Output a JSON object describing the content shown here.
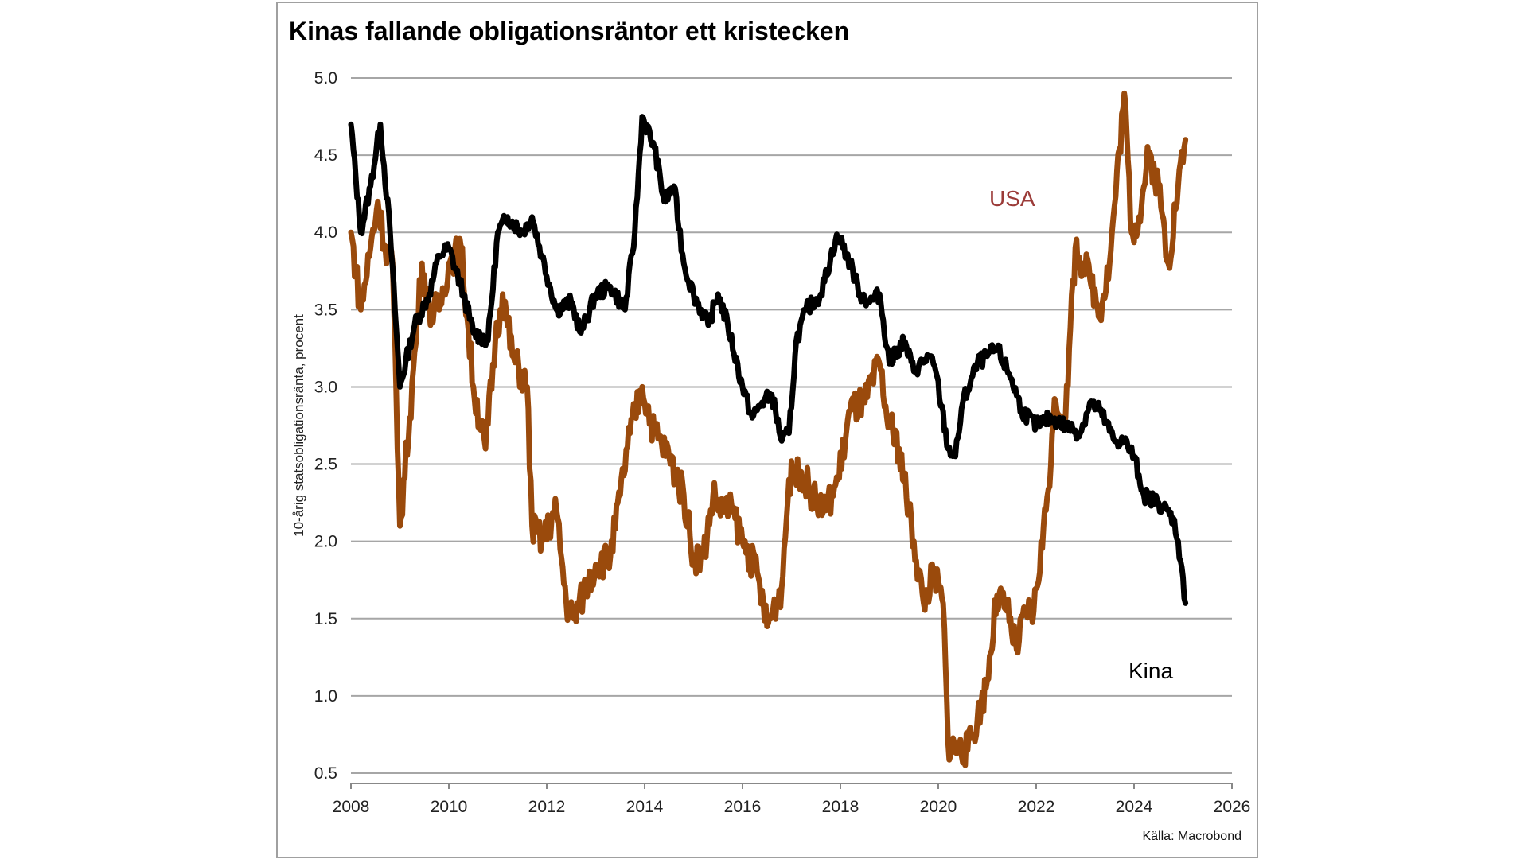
{
  "chart_data": {
    "type": "line",
    "title": "Kinas fallande obligationsräntor ett kristecken",
    "ylabel": "10-årig statsobligationsränta, procent",
    "xlabel": "",
    "source": "Källa: Macrobond",
    "xlim": [
      2008,
      2026
    ],
    "ylim": [
      0.5,
      5.0
    ],
    "grid": true,
    "xticks": [
      "2008",
      "2010",
      "2012",
      "2014",
      "2016",
      "2018",
      "2020",
      "2022",
      "2024",
      "2026"
    ],
    "yticks": [
      "5.0",
      "4.5",
      "4.0",
      "3.5",
      "3.0",
      "2.5",
      "2.0",
      "1.5",
      "1.0",
      "0.5"
    ],
    "series": [
      {
        "name": "Kina",
        "color": "#000000",
        "label_color": "#000000",
        "x": [
          2008.0,
          2008.2,
          2008.4,
          2008.6,
          2008.8,
          2009.0,
          2009.3,
          2009.6,
          2009.8,
          2010.0,
          2010.3,
          2010.5,
          2010.8,
          2011.0,
          2011.2,
          2011.5,
          2011.7,
          2011.9,
          2012.2,
          2012.5,
          2012.7,
          2013.0,
          2013.3,
          2013.6,
          2013.8,
          2013.95,
          2014.2,
          2014.4,
          2014.6,
          2014.8,
          2015.0,
          2015.3,
          2015.5,
          2015.7,
          2016.0,
          2016.2,
          2016.4,
          2016.6,
          2016.8,
          2016.95,
          2017.1,
          2017.3,
          2017.6,
          2017.9,
          2018.0,
          2018.2,
          2018.4,
          2018.6,
          2018.8,
          2019.0,
          2019.3,
          2019.5,
          2019.8,
          2019.95,
          2020.2,
          2020.35,
          2020.5,
          2020.8,
          2021.0,
          2021.2,
          2021.5,
          2021.7,
          2022.0,
          2022.3,
          2022.6,
          2022.9,
          2023.1,
          2023.3,
          2023.6,
          2023.8,
          2024.0,
          2024.2,
          2024.5,
          2024.8,
          2024.9,
          2025.05
        ],
        "values": [
          4.7,
          4.0,
          4.3,
          4.7,
          4.0,
          3.0,
          3.4,
          3.6,
          3.85,
          3.9,
          3.6,
          3.35,
          3.3,
          4.0,
          4.1,
          4.0,
          4.1,
          3.85,
          3.5,
          3.55,
          3.35,
          3.6,
          3.65,
          3.5,
          4.0,
          4.75,
          4.55,
          4.2,
          4.3,
          3.8,
          3.6,
          3.4,
          3.6,
          3.4,
          3.0,
          2.8,
          2.9,
          2.95,
          2.65,
          2.7,
          3.3,
          3.5,
          3.6,
          3.95,
          3.95,
          3.8,
          3.6,
          3.55,
          3.6,
          3.15,
          3.3,
          3.1,
          3.2,
          3.1,
          2.6,
          2.55,
          2.9,
          3.15,
          3.2,
          3.25,
          3.05,
          2.85,
          2.75,
          2.8,
          2.75,
          2.7,
          2.9,
          2.85,
          2.65,
          2.65,
          2.55,
          2.3,
          2.25,
          2.15,
          2.0,
          1.6
        ]
      },
      {
        "name": "USA",
        "color": "#9a4a0c",
        "label_color": "#9b3b38",
        "x": [
          2008.0,
          2008.2,
          2008.4,
          2008.55,
          2008.7,
          2008.85,
          2008.95,
          2009.0,
          2009.2,
          2009.45,
          2009.6,
          2009.8,
          2010.0,
          2010.25,
          2010.5,
          2010.75,
          2010.95,
          2011.1,
          2011.3,
          2011.6,
          2011.7,
          2011.9,
          2012.2,
          2012.4,
          2012.55,
          2012.8,
          2013.0,
          2013.3,
          2013.5,
          2013.7,
          2013.95,
          2014.2,
          2014.5,
          2014.8,
          2015.0,
          2015.2,
          2015.4,
          2015.6,
          2015.8,
          2016.0,
          2016.3,
          2016.5,
          2016.8,
          2016.95,
          2017.2,
          2017.5,
          2017.7,
          2017.95,
          2018.2,
          2018.5,
          2018.8,
          2018.95,
          2019.2,
          2019.5,
          2019.7,
          2019.9,
          2020.1,
          2020.2,
          2020.4,
          2020.6,
          2020.8,
          2021.0,
          2021.2,
          2021.4,
          2021.6,
          2021.8,
          2021.95,
          2022.2,
          2022.4,
          2022.6,
          2022.8,
          2022.95,
          2023.1,
          2023.3,
          2023.5,
          2023.8,
          2023.95,
          2024.1,
          2024.3,
          2024.5,
          2024.7,
          2024.9,
          2025.05
        ],
        "values": [
          4.0,
          3.5,
          3.9,
          4.2,
          3.9,
          3.8,
          2.6,
          2.1,
          2.8,
          3.8,
          3.5,
          3.5,
          3.8,
          3.9,
          3.0,
          2.6,
          3.3,
          3.6,
          3.2,
          3.0,
          2.1,
          2.0,
          2.2,
          1.6,
          1.5,
          1.7,
          1.85,
          1.9,
          2.3,
          2.7,
          3.0,
          2.7,
          2.55,
          2.3,
          1.9,
          1.9,
          2.3,
          2.2,
          2.2,
          2.0,
          1.8,
          1.45,
          1.7,
          2.4,
          2.45,
          2.25,
          2.2,
          2.4,
          2.85,
          2.9,
          3.15,
          2.8,
          2.6,
          2.0,
          1.6,
          1.8,
          1.6,
          0.7,
          0.65,
          0.65,
          0.85,
          1.1,
          1.65,
          1.55,
          1.3,
          1.55,
          1.55,
          2.2,
          2.9,
          2.8,
          3.9,
          3.8,
          3.7,
          3.5,
          3.8,
          4.9,
          4.0,
          4.1,
          4.5,
          4.3,
          3.8,
          4.3,
          4.6
        ]
      }
    ]
  }
}
